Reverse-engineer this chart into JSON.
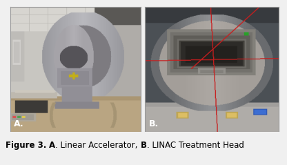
{
  "background_color": "#f0f0f0",
  "label_A": "A.",
  "label_B": "B.",
  "label_color": "white",
  "label_fontsize": 9,
  "border_color": "#999999",
  "caption_fontsize": 8.5,
  "fig_width": 4.16,
  "fig_height": 2.39,
  "dpi": 100,
  "caption_parts": [
    [
      "Figure 3.",
      true
    ],
    [
      " ",
      false
    ],
    [
      "A",
      true
    ],
    [
      ". Linear Accelerator, ",
      false
    ],
    [
      "B",
      true
    ],
    [
      ". LINAC Treatment Head",
      false
    ]
  ]
}
